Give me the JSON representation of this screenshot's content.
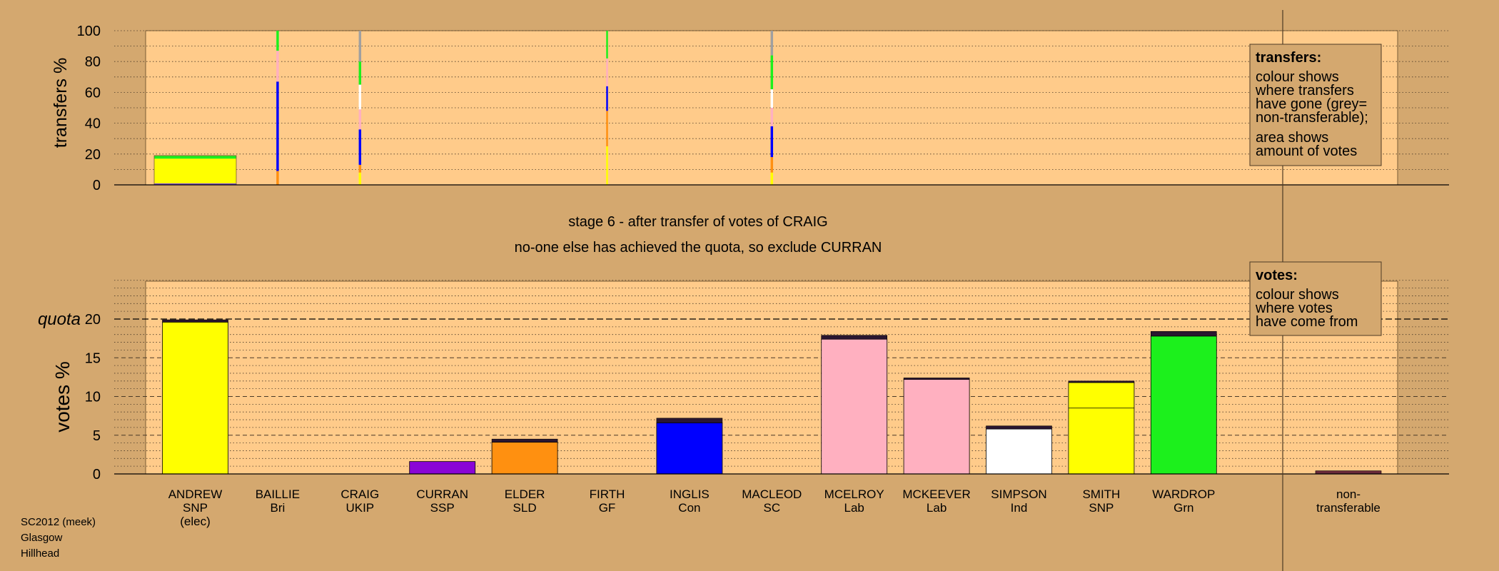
{
  "colors": {
    "background": "#d4a86f",
    "panel": "#ffcb8a",
    "party": {
      "SNP": "#ffff00",
      "Bri": "#7a4bd0",
      "UKIP": "#b10fcf",
      "SSP": "#8a05d6",
      "SLD": "#ff9010",
      "GF": "#40e040",
      "Con": "#0000ff",
      "SC": "#e0e0e0",
      "Lab": "#ffb0c0",
      "Ind": "#ffffff",
      "Grn": "#1cf01c",
      "NT": "#a0a0a0"
    }
  },
  "stage_title": "stage 6 - after transfer of votes of CRAIG",
  "stage_subtitle": "no-one else has achieved the quota, so exclude CURRAN",
  "footer": {
    "line1": "SC2012 (meek)",
    "line2": "Glasgow",
    "line3": "Hillhead"
  },
  "legends": {
    "transfers": {
      "heading": "transfers:",
      "lines": [
        "colour shows",
        "where transfers",
        "have gone (grey=",
        "non-transferable);"
      ],
      "lines2": [
        "area shows",
        "amount of votes"
      ]
    },
    "votes": {
      "heading": "votes:",
      "lines": [
        "colour shows",
        "where votes",
        "have come from"
      ]
    }
  },
  "chart_data": [
    {
      "type": "bar",
      "name": "transfers",
      "ylabel": "transfers %",
      "ylim": [
        0,
        100
      ],
      "yticks": [
        0,
        20,
        40,
        60,
        80,
        100
      ],
      "bars": [
        {
          "candidate": "ANDREW",
          "width": 1.0,
          "segments": [
            {
              "party": "Bri",
              "value": 1
            },
            {
              "party": "SNP",
              "value": 16
            },
            {
              "party": "Grn",
              "value": 2
            }
          ]
        },
        {
          "candidate": "BAILLIE",
          "width": 0.03,
          "segments": [
            {
              "party": "SLD",
              "value": 9
            },
            {
              "party": "Con",
              "value": 58
            },
            {
              "party": "Lab",
              "value": 20
            },
            {
              "party": "Grn",
              "value": 13
            }
          ]
        },
        {
          "candidate": "CRAIG",
          "width": 0.03,
          "segments": [
            {
              "party": "SNP",
              "value": 8
            },
            {
              "party": "SLD",
              "value": 5
            },
            {
              "party": "Con",
              "value": 23
            },
            {
              "party": "Lab",
              "value": 13
            },
            {
              "party": "Ind",
              "value": 16
            },
            {
              "party": "Grn",
              "value": 15
            },
            {
              "party": "NT",
              "value": 20
            }
          ]
        },
        {
          "candidate": "FIRTH",
          "width": 0.015,
          "segments": [
            {
              "party": "SNP",
              "value": 25
            },
            {
              "party": "SLD",
              "value": 23
            },
            {
              "party": "Con",
              "value": 16
            },
            {
              "party": "Lab",
              "value": 18
            },
            {
              "party": "Grn",
              "value": 18
            }
          ]
        },
        {
          "candidate": "MACLEOD",
          "width": 0.03,
          "segments": [
            {
              "party": "SNP",
              "value": 8
            },
            {
              "party": "SLD",
              "value": 10
            },
            {
              "party": "Con",
              "value": 20
            },
            {
              "party": "Lab",
              "value": 12
            },
            {
              "party": "Ind",
              "value": 12
            },
            {
              "party": "Grn",
              "value": 22
            },
            {
              "party": "NT",
              "value": 16
            }
          ]
        }
      ]
    },
    {
      "type": "bar",
      "name": "votes",
      "ylabel": "votes %",
      "ylim": [
        0,
        25
      ],
      "yticks": [
        0,
        5,
        10,
        15,
        20
      ],
      "quota": 20,
      "quota_label": "quota",
      "categories": [
        "ANDREW",
        "BAILLIE",
        "CRAIG",
        "CURRAN",
        "ELDER",
        "FIRTH",
        "INGLIS",
        "MACLEOD",
        "MCELROY",
        "MCKEEVER",
        "SIMPSON",
        "SMITH",
        "WARDROP"
      ],
      "x_labels": [
        [
          "ANDREW",
          "SNP",
          "(elec)"
        ],
        [
          "BAILLIE",
          "Bri"
        ],
        [
          "CRAIG",
          "UKIP"
        ],
        [
          "CURRAN",
          "SSP"
        ],
        [
          "ELDER",
          "SLD"
        ],
        [
          "FIRTH",
          "GF"
        ],
        [
          "INGLIS",
          "Con"
        ],
        [
          "MACLEOD",
          "SC"
        ],
        [
          "MCELROY",
          "Lab"
        ],
        [
          "MCKEEVER",
          "Lab"
        ],
        [
          "SIMPSON",
          "Ind"
        ],
        [
          "SMITH",
          "SNP"
        ],
        [
          "WARDROP",
          "Grn"
        ]
      ],
      "nontransferable_label": [
        "non-",
        "transferable"
      ],
      "nontransferable_value": 0.4,
      "totals": [
        19.9,
        0,
        0,
        1.6,
        4.5,
        0,
        7.2,
        0,
        17.9,
        12.4,
        6.2,
        12.0,
        18.4
      ],
      "first_pref_party": [
        "SNP",
        "Bri",
        "UKIP",
        "SSP",
        "SLD",
        "GF",
        "Con",
        "SC",
        "Lab",
        "Lab",
        "Ind",
        "SNP",
        "Grn"
      ],
      "transfer_top": [
        0.3,
        0,
        0,
        0,
        0.4,
        0,
        0.6,
        0,
        0.5,
        0.2,
        0.4,
        0.2,
        0.6
      ],
      "smith_split": 8.5
    }
  ]
}
